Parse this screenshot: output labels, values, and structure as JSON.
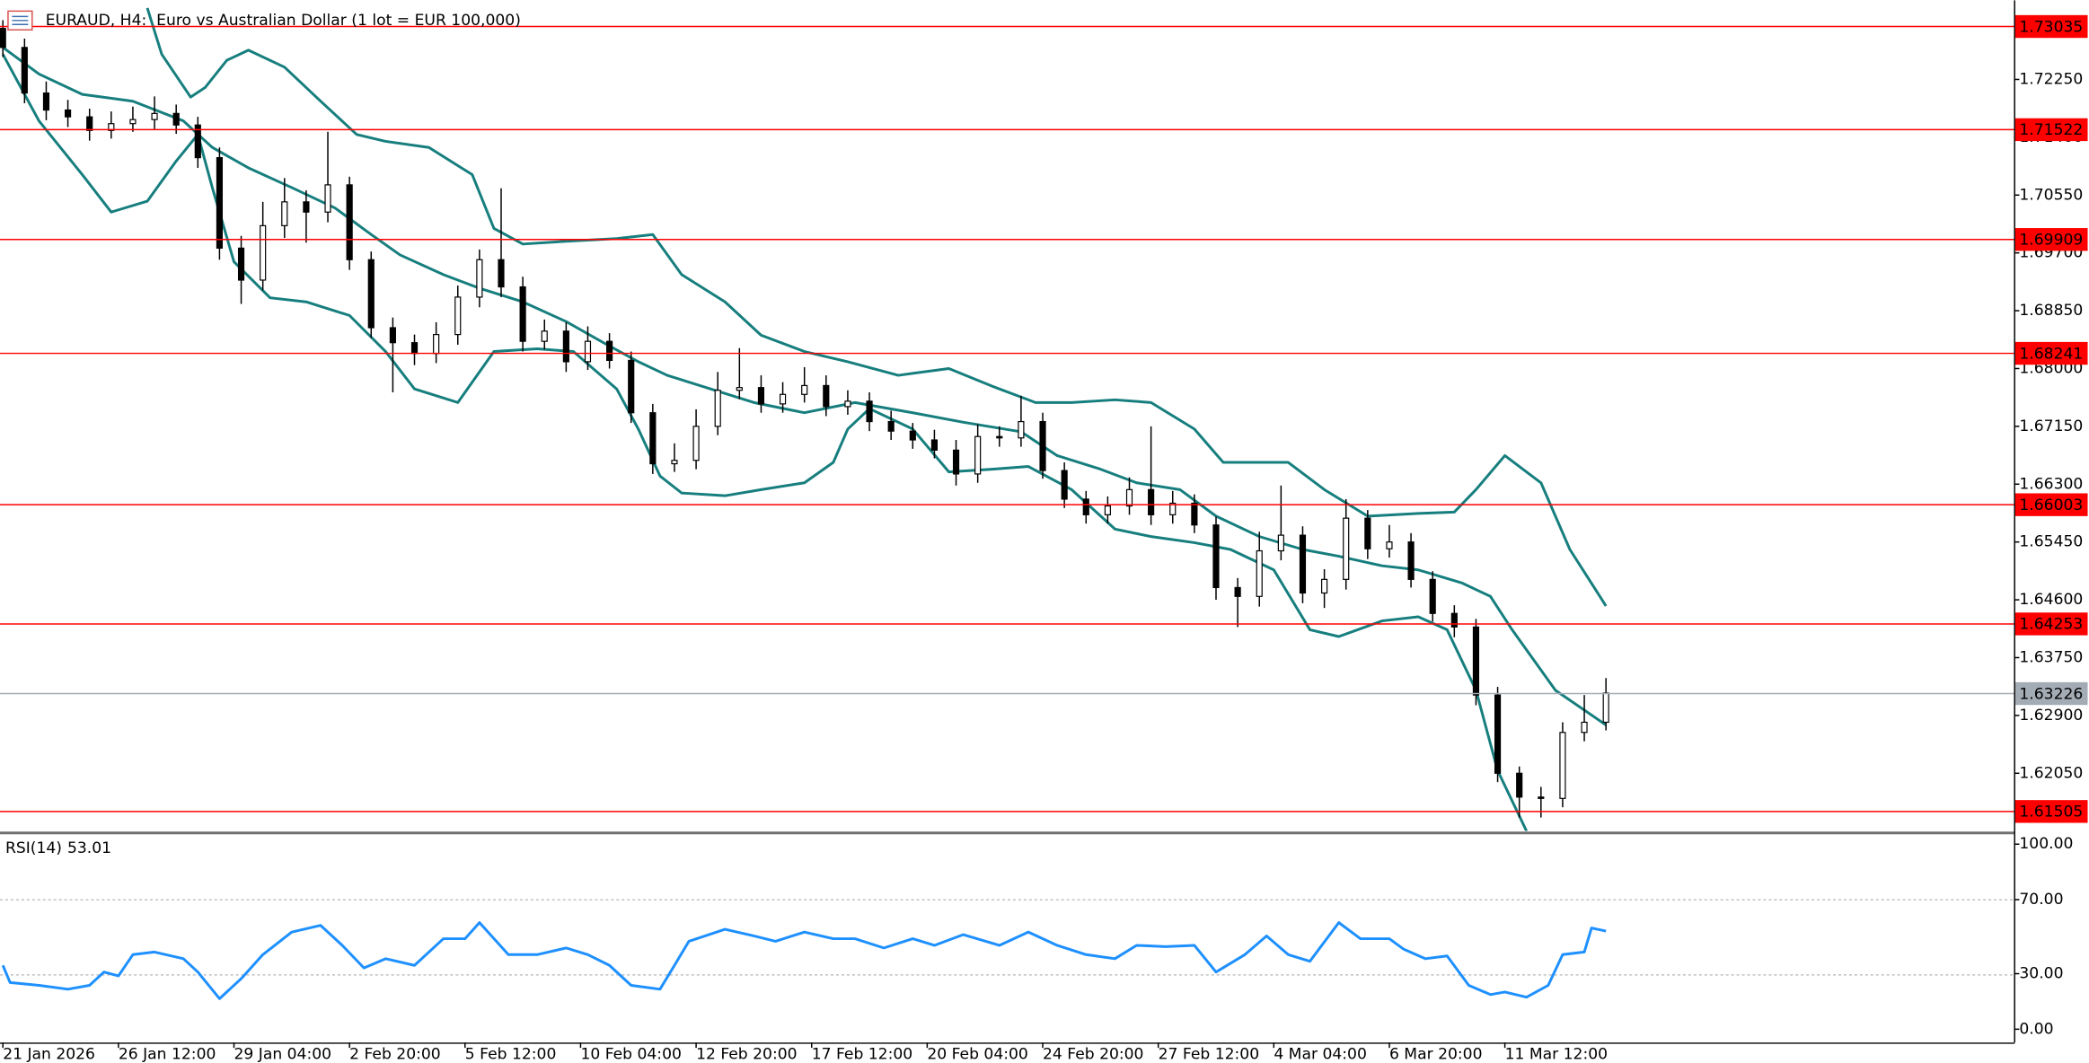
{
  "chart_data": [
    {
      "type": "candlestick",
      "title": "EURAUD, H4:  Euro vs Australian Dollar (1 lot = EUR 100,000)",
      "x": [
        0,
        3,
        6,
        9,
        12,
        15,
        18,
        21,
        24,
        27,
        30,
        33,
        36,
        39,
        42,
        45,
        48,
        51,
        54,
        57,
        60,
        63,
        66,
        69,
        72,
        75,
        78,
        81,
        84,
        87,
        90,
        93,
        96,
        99,
        102,
        105,
        108,
        111,
        114,
        117,
        120,
        123,
        126,
        129,
        132,
        135,
        138,
        141,
        144,
        147,
        150,
        153,
        156,
        159,
        162,
        165,
        168,
        171,
        174,
        177,
        180,
        183,
        186,
        189,
        192,
        195,
        198,
        201,
        204,
        207,
        210,
        213,
        216,
        219,
        222
      ],
      "open": [
        1.73,
        1.7272,
        1.7205,
        1.718,
        1.717,
        1.715,
        1.716,
        1.7166,
        1.7175,
        1.7158,
        1.711,
        1.6977,
        1.693,
        1.701,
        1.7045,
        1.703,
        1.707,
        1.696,
        1.686,
        1.6838,
        1.6822,
        1.685,
        1.6905,
        1.696,
        1.692,
        1.684,
        1.6855,
        1.681,
        1.684,
        1.6812,
        1.6735,
        1.666,
        1.6665,
        1.6715,
        1.6768,
        1.6772,
        1.6748,
        1.6762,
        1.6775,
        1.6744,
        1.6752,
        1.6722,
        1.6708,
        1.6695,
        1.668,
        1.6645,
        1.67,
        1.6698,
        1.6722,
        1.665,
        1.6608,
        1.6585,
        1.6598,
        1.6622,
        1.6585,
        1.6602,
        1.657,
        1.6478,
        1.6465,
        1.6532,
        1.6555,
        1.647,
        1.649,
        1.658,
        1.6535,
        1.6545,
        1.649,
        1.644,
        1.642,
        1.632,
        1.6205,
        1.617,
        1.6168,
        1.6265,
        1.628
      ],
      "high": [
        1.7312,
        1.7285,
        1.7222,
        1.7195,
        1.7182,
        1.7178,
        1.7185,
        1.72,
        1.7188,
        1.717,
        1.7125,
        1.6995,
        1.7045,
        1.708,
        1.7062,
        1.7148,
        1.7082,
        1.6972,
        1.6875,
        1.685,
        1.6868,
        1.6922,
        1.6975,
        1.7065,
        1.6935,
        1.6872,
        1.6868,
        1.6862,
        1.6852,
        1.6825,
        1.6748,
        1.669,
        1.674,
        1.6795,
        1.683,
        1.679,
        1.678,
        1.6802,
        1.679,
        1.6768,
        1.6765,
        1.6738,
        1.672,
        1.671,
        1.6695,
        1.6718,
        1.6715,
        1.676,
        1.6735,
        1.6662,
        1.662,
        1.6612,
        1.664,
        1.6715,
        1.662,
        1.6615,
        1.6582,
        1.6492,
        1.656,
        1.6628,
        1.6568,
        1.6505,
        1.6608,
        1.6592,
        1.657,
        1.6558,
        1.6502,
        1.6452,
        1.6432,
        1.6332,
        1.6215,
        1.6185,
        1.628,
        1.632,
        1.6345
      ],
      "low": [
        1.7258,
        1.719,
        1.7165,
        1.7155,
        1.7135,
        1.7138,
        1.7148,
        1.7152,
        1.7145,
        1.7095,
        1.696,
        1.6895,
        1.6915,
        1.6992,
        1.6985,
        1.7015,
        1.6945,
        1.6845,
        1.6765,
        1.6805,
        1.6808,
        1.6835,
        1.689,
        1.6905,
        1.6825,
        1.6828,
        1.6795,
        1.6798,
        1.68,
        1.672,
        1.6645,
        1.6648,
        1.6652,
        1.6702,
        1.6755,
        1.6735,
        1.6735,
        1.675,
        1.673,
        1.6732,
        1.6708,
        1.6695,
        1.6682,
        1.6668,
        1.6628,
        1.6632,
        1.6685,
        1.6685,
        1.6638,
        1.6595,
        1.6572,
        1.6572,
        1.6585,
        1.657,
        1.6572,
        1.6558,
        1.646,
        1.642,
        1.645,
        1.6518,
        1.6455,
        1.6448,
        1.6475,
        1.652,
        1.6522,
        1.6478,
        1.6428,
        1.6405,
        1.6305,
        1.6192,
        1.614,
        1.614,
        1.6155,
        1.6252,
        1.6268
      ],
      "close": [
        1.7272,
        1.7205,
        1.718,
        1.717,
        1.715,
        1.716,
        1.7166,
        1.7175,
        1.7158,
        1.711,
        1.6977,
        1.693,
        1.701,
        1.7045,
        1.703,
        1.707,
        1.696,
        1.686,
        1.6838,
        1.6822,
        1.685,
        1.6905,
        1.696,
        1.692,
        1.684,
        1.6855,
        1.681,
        1.684,
        1.6812,
        1.6735,
        1.666,
        1.6665,
        1.6715,
        1.6768,
        1.6772,
        1.6748,
        1.6762,
        1.6775,
        1.6744,
        1.6752,
        1.6722,
        1.6708,
        1.6695,
        1.668,
        1.6645,
        1.67,
        1.6698,
        1.6722,
        1.665,
        1.6608,
        1.6585,
        1.6598,
        1.6622,
        1.6585,
        1.6602,
        1.657,
        1.6478,
        1.6465,
        1.6532,
        1.6555,
        1.647,
        1.649,
        1.658,
        1.6535,
        1.6545,
        1.649,
        1.644,
        1.642,
        1.632,
        1.6205,
        1.617,
        1.6168,
        1.6265,
        1.628,
        1.6323
      ],
      "up_color": "#ffffff",
      "down_color": "#000000",
      "xlim": [
        -0.4,
        278.5
      ],
      "xticks": [
        {
          "value": 0,
          "label": "21 Jan 2026"
        },
        {
          "value": 16,
          "label": "26 Jan 12:00"
        },
        {
          "value": 32,
          "label": "29 Jan 04:00"
        },
        {
          "value": 48,
          "label": "2 Feb 20:00"
        },
        {
          "value": 64,
          "label": "5 Feb 12:00"
        },
        {
          "value": 80,
          "label": "10 Feb 04:00"
        },
        {
          "value": 96,
          "label": "12 Feb 20:00"
        },
        {
          "value": 112,
          "label": "17 Feb 12:00"
        },
        {
          "value": 128,
          "label": "20 Feb 04:00"
        },
        {
          "value": 144,
          "label": "24 Feb 20:00"
        },
        {
          "value": 160,
          "label": "27 Feb 12:00"
        },
        {
          "value": 176,
          "label": "4 Mar 04:00"
        },
        {
          "value": 192,
          "label": "6 Mar 20:00"
        },
        {
          "value": 208,
          "label": "11 Mar 12:00"
        }
      ],
      "ylim": [
        1.61203,
        1.73412
      ],
      "yticks": [
        {
          "value": 1.7225,
          "label": "1.72250"
        },
        {
          "value": 1.714,
          "label": "1.71400"
        },
        {
          "value": 1.7055,
          "label": "1.70550"
        },
        {
          "value": 1.697,
          "label": "1.69700"
        },
        {
          "value": 1.6885,
          "label": "1.68850"
        },
        {
          "value": 1.68,
          "label": "1.68000"
        },
        {
          "value": 1.6715,
          "label": "1.67150"
        },
        {
          "value": 1.663,
          "label": "1.66300"
        },
        {
          "value": 1.6545,
          "label": "1.65450"
        },
        {
          "value": 1.646,
          "label": "1.64600"
        },
        {
          "value": 1.6375,
          "label": "1.63750"
        },
        {
          "value": 1.629,
          "label": "1.62900"
        },
        {
          "value": 1.6205,
          "label": "1.62050"
        }
      ],
      "bands": {
        "color": "#177e7e",
        "lines": [
          {
            "x": [
              20,
              22,
              26,
              28,
              31,
              34,
              39,
              44,
              49,
              53,
              59,
              65,
              68,
              72,
              78,
              85,
              90,
              94,
              100,
              105,
              111,
              117,
              124,
              131,
              137,
              143,
              148,
              154,
              159,
              165,
              169,
              172,
              178,
              183,
              189,
              196,
              201,
              204,
              208,
              213,
              217,
              222
            ],
            "values": [
              1.733,
              1.7262,
              1.7199,
              1.7213,
              1.7253,
              1.7268,
              1.7243,
              1.7193,
              1.7144,
              1.7134,
              1.7125,
              1.7085,
              1.7006,
              1.6983,
              1.6987,
              1.6991,
              1.6997,
              1.6938,
              1.6898,
              1.6849,
              1.6825,
              1.681,
              1.679,
              1.68,
              1.6774,
              1.675,
              1.675,
              1.6754,
              1.675,
              1.6711,
              1.6662,
              1.6662,
              1.6662,
              1.6622,
              1.6583,
              1.6587,
              1.6589,
              1.6622,
              1.6672,
              1.6632,
              1.6534,
              1.6451
            ]
          },
          {
            "x": [
              0,
              5,
              11,
              18,
              25,
              29,
              34,
              40,
              46,
              51,
              55,
              61,
              66,
              72,
              78,
              83,
              88,
              92,
              98,
              104,
              111,
              118,
              126,
              133,
              141,
              146,
              152,
              157,
              163,
              168,
              174,
              180,
              185,
              191,
              196,
              202,
              206,
              209,
              215,
              222
            ],
            "values": [
              1.7272,
              1.7233,
              1.7203,
              1.7193,
              1.7164,
              1.7125,
              1.7095,
              1.7066,
              1.7036,
              1.6997,
              1.6967,
              1.6938,
              1.6918,
              1.6898,
              1.6869,
              1.6839,
              1.681,
              1.679,
              1.677,
              1.675,
              1.6735,
              1.675,
              1.6735,
              1.6721,
              1.6707,
              1.6672,
              1.6652,
              1.6632,
              1.6622,
              1.6583,
              1.6553,
              1.6534,
              1.6524,
              1.651,
              1.6504,
              1.6485,
              1.6465,
              1.6416,
              1.6327,
              1.6276
            ]
          },
          {
            "x": [
              0,
              5,
              11,
              15,
              20,
              24,
              27,
              29,
              32,
              37,
              42,
              48,
              53,
              57,
              63,
              68,
              74,
              79,
              85,
              88,
              91,
              94,
              100,
              105,
              111,
              115,
              117,
              120,
              126,
              131,
              137,
              142,
              148,
              154,
              159,
              165,
              170,
              176,
              181,
              185,
              191,
              196,
              200,
              204,
              207,
              211
            ],
            "values": [
              1.7262,
              1.7164,
              1.7085,
              1.703,
              1.7046,
              1.7105,
              1.7144,
              1.7066,
              1.6957,
              1.6904,
              1.6898,
              1.6878,
              1.6825,
              1.677,
              1.675,
              1.6825,
              1.6829,
              1.6825,
              1.677,
              1.6711,
              1.6642,
              1.6617,
              1.6613,
              1.6622,
              1.6632,
              1.6662,
              1.6711,
              1.6741,
              1.6711,
              1.6648,
              1.6652,
              1.6656,
              1.6622,
              1.6564,
              1.6553,
              1.6544,
              1.6534,
              1.6504,
              1.6416,
              1.6406,
              1.6429,
              1.6435,
              1.6416,
              1.6327,
              1.6209,
              1.612
            ]
          }
        ]
      },
      "levels": {
        "color": "#ff0000",
        "values": [
          1.73035,
          1.71522,
          1.69909,
          1.68241,
          1.66003,
          1.64253,
          1.61505
        ]
      },
      "last_price": {
        "color": "#a3acb5",
        "value": 1.63226
      }
    },
    {
      "type": "line",
      "title": "RSI(14)",
      "x": [
        0,
        1,
        5,
        9,
        12,
        14,
        16,
        18,
        21,
        25,
        27,
        30,
        33,
        36,
        40,
        44,
        47,
        50,
        53,
        57,
        61,
        64,
        66,
        70,
        74,
        78,
        81,
        84,
        87,
        91,
        93,
        95,
        100,
        104,
        107,
        111,
        115,
        118,
        122,
        126,
        129,
        133,
        138,
        142,
        146,
        150,
        154,
        157,
        161,
        165,
        168,
        172,
        175,
        178,
        181,
        185,
        188,
        192,
        194,
        197,
        200,
        203,
        206,
        208,
        211,
        214,
        216,
        219,
        220,
        222
      ],
      "values": [
        34.5,
        25.2,
        23.7,
        21.6,
        23.7,
        30.9,
        28.8,
        40.3,
        41.7,
        38.1,
        30.9,
        16.5,
        27.3,
        40.3,
        52.5,
        56.1,
        45.3,
        33.1,
        38.1,
        34.5,
        48.9,
        48.9,
        57.6,
        40.3,
        40.3,
        43.9,
        40.3,
        34.5,
        23.7,
        21.6,
        34.5,
        47.5,
        54.0,
        50.4,
        47.5,
        52.5,
        48.9,
        48.9,
        43.9,
        48.9,
        45.3,
        51.1,
        45.3,
        52.5,
        45.3,
        40.3,
        38.1,
        45.3,
        44.6,
        45.3,
        30.9,
        40.3,
        50.4,
        40.3,
        36.7,
        57.6,
        48.9,
        48.9,
        43.2,
        38.1,
        39.6,
        23.7,
        18.7,
        20.1,
        17.3,
        23.7,
        40.3,
        41.7,
        54.7,
        53.01
      ],
      "color": "#1e90ff",
      "ylim": [
        -7.2,
        105
      ],
      "yticks": [
        {
          "value": 100,
          "label": "100.00"
        },
        {
          "value": 70,
          "label": "70.00"
        },
        {
          "value": 30,
          "label": "30.00"
        },
        {
          "value": 0,
          "label": "0.00"
        }
      ],
      "levels": [
        70,
        30
      ]
    }
  ]
}
